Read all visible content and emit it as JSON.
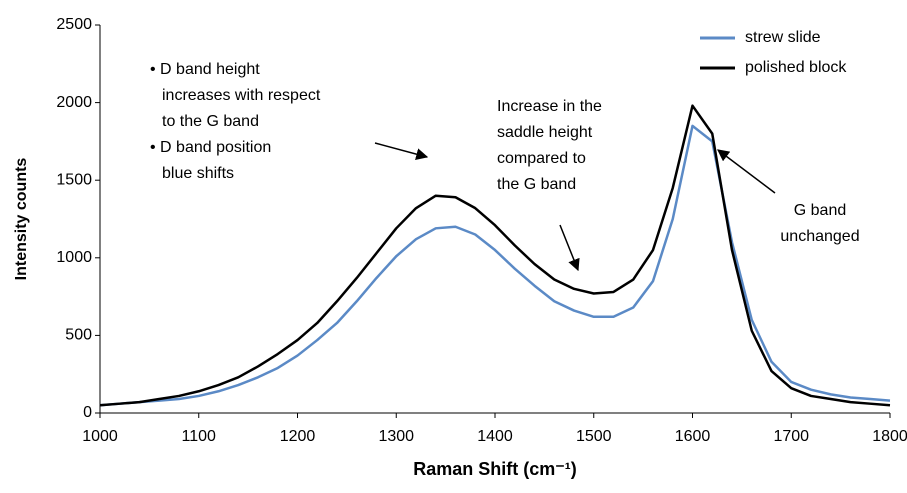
{
  "chart_data": {
    "type": "line",
    "x_label": "Raman Shift (cm⁻¹)",
    "y_label": "Intensity counts",
    "x": [
      1000,
      1020,
      1040,
      1060,
      1080,
      1100,
      1120,
      1140,
      1160,
      1180,
      1200,
      1220,
      1240,
      1260,
      1280,
      1300,
      1320,
      1340,
      1360,
      1380,
      1400,
      1420,
      1440,
      1460,
      1480,
      1500,
      1520,
      1540,
      1560,
      1580,
      1600,
      1620,
      1640,
      1660,
      1680,
      1700,
      1720,
      1740,
      1760,
      1780,
      1800
    ],
    "series": [
      {
        "name": "strew slide",
        "color": "#5b8ac6",
        "values": [
          50,
          60,
          70,
          80,
          90,
          110,
          140,
          180,
          230,
          290,
          370,
          470,
          580,
          720,
          870,
          1010,
          1120,
          1190,
          1200,
          1150,
          1050,
          930,
          820,
          720,
          660,
          620,
          620,
          680,
          850,
          1250,
          1850,
          1750,
          1100,
          600,
          330,
          200,
          150,
          120,
          100,
          90,
          80
        ]
      },
      {
        "name": "polished block",
        "color": "#000000",
        "values": [
          50,
          60,
          70,
          90,
          110,
          140,
          180,
          230,
          300,
          380,
          470,
          580,
          720,
          870,
          1030,
          1190,
          1320,
          1400,
          1390,
          1320,
          1210,
          1080,
          960,
          860,
          800,
          770,
          780,
          860,
          1050,
          1450,
          1980,
          1800,
          1050,
          530,
          270,
          160,
          110,
          90,
          70,
          60,
          50
        ]
      }
    ],
    "xlim": [
      1000,
      1800
    ],
    "xticks": [
      1000,
      1100,
      1200,
      1300,
      1400,
      1500,
      1600,
      1700,
      1800
    ],
    "ylim": [
      0,
      2500
    ],
    "yticks": [
      0,
      500,
      1000,
      1500,
      2000,
      2500
    ],
    "grid": false,
    "legend": "top-right",
    "annotations": [
      {
        "lines": [
          "• D band height",
          "increases with respect",
          "to the G band",
          "• D band position",
          "blue shifts"
        ]
      },
      {
        "lines": [
          "Increase in the",
          "saddle height",
          "compared to",
          "the G band"
        ]
      },
      {
        "lines": [
          "G band",
          "unchanged"
        ]
      }
    ]
  }
}
